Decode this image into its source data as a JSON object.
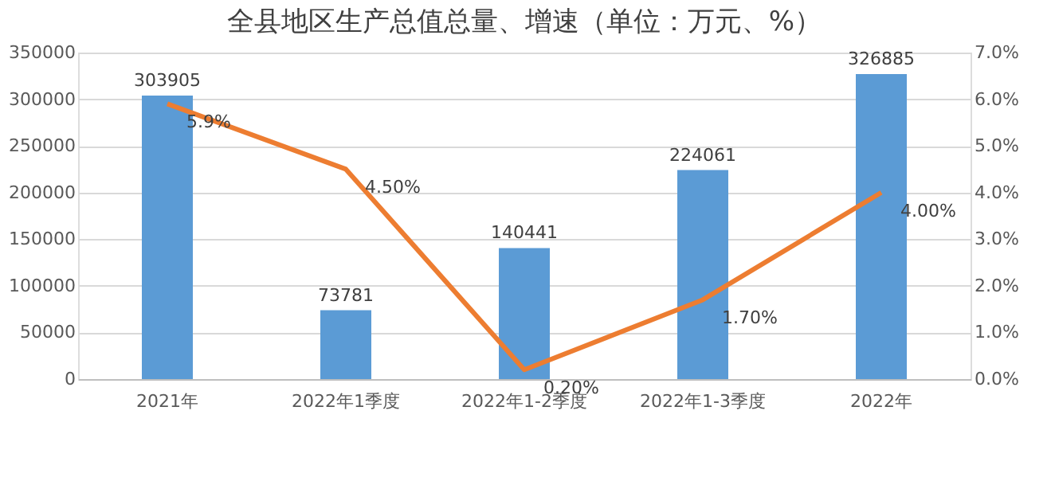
{
  "chart_data": {
    "type": "bar",
    "title": "全县地区生产总值总量、增速（单位：万元、%）",
    "categories": [
      "2021年",
      "2022年1季度",
      "2022年1-2季度",
      "2022年1-3季度",
      "2022年"
    ],
    "series": [
      {
        "color": "#5b9bd5",
        "values": [
          303905,
          73781,
          140441,
          224061,
          326885
        ],
        "value_labels": [
          "303905",
          "73781",
          "140441",
          "224061",
          "326885"
        ]
      },
      {
        "type": "line",
        "axis": "y2",
        "color": "#ed7d31",
        "values": [
          5.9,
          4.5,
          0.2,
          1.7,
          4.0
        ],
        "value_labels": [
          "5.9%",
          "4.50%",
          "0.20%",
          "1.70%",
          "4.00%"
        ]
      }
    ],
    "ylim": [
      0,
      350000
    ],
    "yticks": [
      0,
      50000,
      100000,
      150000,
      200000,
      250000,
      300000,
      350000
    ],
    "y2lim": [
      0,
      7
    ],
    "y2ticks": [
      {
        "value": 0,
        "label": "0.0%"
      },
      {
        "value": 1,
        "label": "1.0%"
      },
      {
        "value": 2,
        "label": "2.0%"
      },
      {
        "value": 3,
        "label": "3.0%"
      },
      {
        "value": 4,
        "label": "4.0%"
      },
      {
        "value": 5,
        "label": "5.0%"
      },
      {
        "value": 6,
        "label": "6.0%"
      },
      {
        "value": 7,
        "label": "7.0%"
      }
    ],
    "grid": "y",
    "line_style": "solid",
    "marker": "none"
  }
}
